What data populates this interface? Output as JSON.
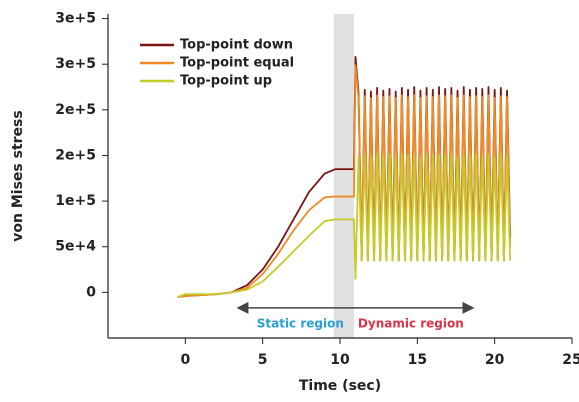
{
  "chart_data": {
    "type": "line",
    "xlabel": "Time (sec)",
    "ylabel": "von Mises stress",
    "xlim": [
      -5,
      25
    ],
    "ylim": [
      -50000,
      305000
    ],
    "xticks": [
      0,
      5,
      10,
      15,
      20,
      25
    ],
    "yticks": [
      0,
      {
        "value": 50000,
        "label": "5e+4"
      },
      {
        "value": 100000,
        "label": "1e+5"
      },
      {
        "value": 150000,
        "label": "2e+5"
      },
      {
        "value": 200000,
        "label": "2e+5"
      },
      {
        "value": 250000,
        "label": "3e+5"
      },
      {
        "value": 300000,
        "label": "3e+5"
      }
    ],
    "legend": "upper left",
    "shaded_region": {
      "x": [
        9.6,
        10.9
      ],
      "color": "#e0e0e0"
    },
    "arrow": {
      "x": [
        3.4,
        18.6
      ],
      "y": -17000,
      "color": "#444444"
    },
    "annotations": [
      {
        "text": "Static region",
        "color": "#2a9fd6"
      },
      {
        "text": "Dynamic region",
        "color": "#d9334a"
      }
    ],
    "x": [
      -0.5,
      0,
      1,
      2,
      3,
      4,
      5,
      6,
      7,
      8,
      9,
      9.7,
      10.9,
      11.0,
      11.2,
      11.4,
      11.6,
      11.8,
      12.0,
      12.2,
      12.4,
      12.6,
      12.8,
      13.0,
      13.2,
      13.4,
      13.6,
      13.8,
      14.0,
      14.2,
      14.4,
      14.6,
      14.8,
      15.0,
      15.2,
      15.4,
      15.6,
      15.8,
      16.0,
      16.2,
      16.4,
      16.6,
      16.8,
      17.0,
      17.2,
      17.4,
      17.6,
      17.8,
      18.0,
      18.2,
      18.4,
      18.6,
      18.8,
      19.0,
      19.2,
      19.4,
      19.6,
      19.8,
      20.0,
      20.2,
      20.4,
      20.6,
      20.8,
      21.0
    ],
    "series": [
      {
        "name": "Top-point down",
        "color": "#7a1414",
        "values": [
          -5000,
          -4000,
          -3000,
          -2000,
          0,
          8000,
          25000,
          50000,
          80000,
          110000,
          130000,
          135000,
          135000,
          258000,
          218000,
          35000,
          222000,
          35000,
          220000,
          35000,
          224000,
          35000,
          221000,
          35000,
          223000,
          35000,
          220000,
          35000,
          224000,
          35000,
          222000,
          35000,
          225000,
          35000,
          221000,
          35000,
          224000,
          35000,
          222000,
          35000,
          225000,
          35000,
          223000,
          35000,
          224000,
          35000,
          221000,
          35000,
          225000,
          35000,
          222000,
          35000,
          224000,
          35000,
          223000,
          35000,
          225000,
          35000,
          222000,
          35000,
          224000,
          35000,
          221000,
          60000
        ]
      },
      {
        "name": "Top-point equal",
        "color": "#f08a24",
        "values": [
          -5000,
          -4000,
          -3000,
          -2000,
          0,
          5000,
          20000,
          42000,
          68000,
          90000,
          104000,
          105000,
          105000,
          249000,
          212000,
          35000,
          215000,
          35000,
          213000,
          35000,
          216000,
          35000,
          214000,
          35000,
          215000,
          35000,
          213000,
          35000,
          216000,
          35000,
          214000,
          35000,
          216000,
          35000,
          213000,
          35000,
          215000,
          35000,
          214000,
          35000,
          216000,
          35000,
          215000,
          35000,
          216000,
          35000,
          213000,
          35000,
          216000,
          35000,
          214000,
          35000,
          215000,
          35000,
          214000,
          35000,
          216000,
          35000,
          213000,
          35000,
          215000,
          35000,
          214000,
          50000
        ]
      },
      {
        "name": "Top-point up",
        "color": "#c3cc2b",
        "values": [
          -5000,
          -2000,
          -2000,
          -2000,
          0,
          3000,
          12000,
          28000,
          45000,
          62000,
          78000,
          80000,
          80000,
          15000,
          148000,
          35000,
          151000,
          35000,
          149000,
          35000,
          152000,
          35000,
          150000,
          35000,
          151000,
          35000,
          149000,
          35000,
          152000,
          35000,
          150000,
          35000,
          151000,
          35000,
          149000,
          35000,
          152000,
          35000,
          150000,
          35000,
          151000,
          35000,
          150000,
          35000,
          152000,
          35000,
          149000,
          35000,
          151000,
          35000,
          150000,
          35000,
          152000,
          35000,
          150000,
          35000,
          151000,
          35000,
          149000,
          35000,
          152000,
          35000,
          150000,
          35000
        ]
      }
    ]
  }
}
